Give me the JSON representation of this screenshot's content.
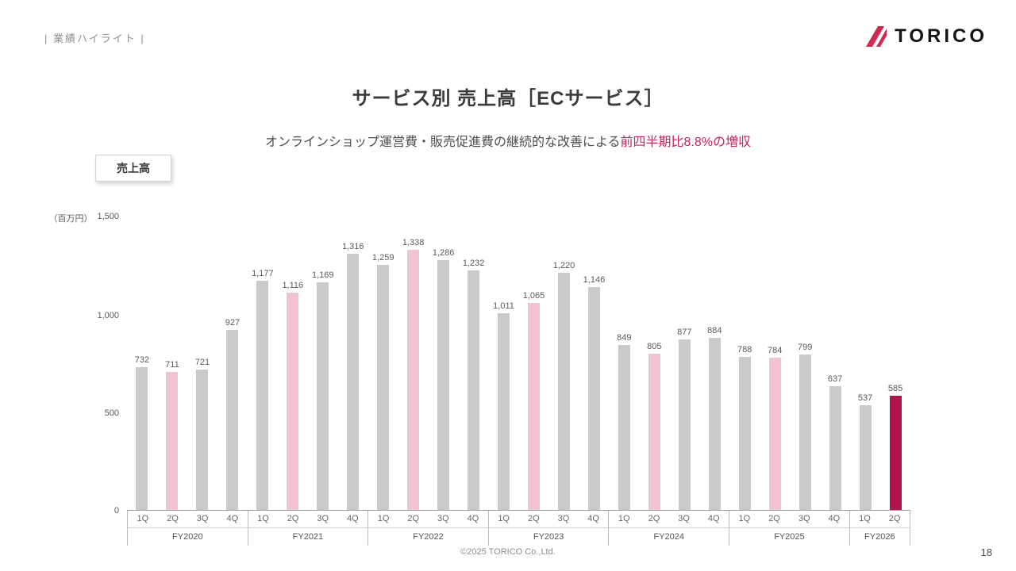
{
  "header": {
    "breadcrumb": "| 業績ハイライト |",
    "logo_text": "TORICO"
  },
  "title": "サービス別 売上高［ECサービス］",
  "subtitle": {
    "normal": "オンラインショップ運営費・販売促進費の継続的な改善による",
    "highlight": "前四半期比8.8%の増収"
  },
  "legend_label": "売上高",
  "footer": {
    "copyright": "©2025 TORICO Co.,Ltd.",
    "page_number": "18"
  },
  "chart_data": {
    "type": "bar",
    "title": "サービス別 売上高［ECサービス］",
    "unit_label": "（百万円）",
    "ylim": [
      0,
      1500
    ],
    "yticks": [
      "1,500",
      "1,000",
      "500",
      "0"
    ],
    "legend": "売上高",
    "grid": false,
    "colors": {
      "gray": "#c9c9c9",
      "pink": "#f0c2d3",
      "crimson": "#b0124b"
    },
    "groups": [
      {
        "fiscal_year": "FY2020",
        "quarters": [
          "1Q",
          "2Q",
          "3Q",
          "4Q"
        ],
        "values": [
          732,
          711,
          721,
          927
        ],
        "bar_colors": [
          "gray",
          "pink",
          "gray",
          "gray"
        ]
      },
      {
        "fiscal_year": "FY2021",
        "quarters": [
          "1Q",
          "2Q",
          "3Q",
          "4Q"
        ],
        "values": [
          1177,
          1116,
          1169,
          1316
        ],
        "bar_colors": [
          "gray",
          "pink",
          "gray",
          "gray"
        ]
      },
      {
        "fiscal_year": "FY2022",
        "quarters": [
          "1Q",
          "2Q",
          "3Q",
          "4Q"
        ],
        "values": [
          1259,
          1338,
          1286,
          1232
        ],
        "bar_colors": [
          "gray",
          "pink",
          "gray",
          "gray"
        ]
      },
      {
        "fiscal_year": "FY2023",
        "quarters": [
          "1Q",
          "2Q",
          "3Q",
          "4Q"
        ],
        "values": [
          1011,
          1065,
          1220,
          1146
        ],
        "bar_colors": [
          "gray",
          "pink",
          "gray",
          "gray"
        ]
      },
      {
        "fiscal_year": "FY2024",
        "quarters": [
          "1Q",
          "2Q",
          "3Q",
          "4Q"
        ],
        "values": [
          849,
          805,
          877,
          884
        ],
        "bar_colors": [
          "gray",
          "pink",
          "gray",
          "gray"
        ]
      },
      {
        "fiscal_year": "FY2025",
        "quarters": [
          "1Q",
          "2Q",
          "3Q",
          "4Q"
        ],
        "values": [
          788,
          784,
          799,
          637
        ],
        "bar_colors": [
          "gray",
          "pink",
          "gray",
          "gray"
        ]
      },
      {
        "fiscal_year": "FY2026",
        "quarters": [
          "1Q",
          "2Q"
        ],
        "values": [
          537,
          585
        ],
        "bar_colors": [
          "gray",
          "crimson"
        ]
      }
    ]
  }
}
